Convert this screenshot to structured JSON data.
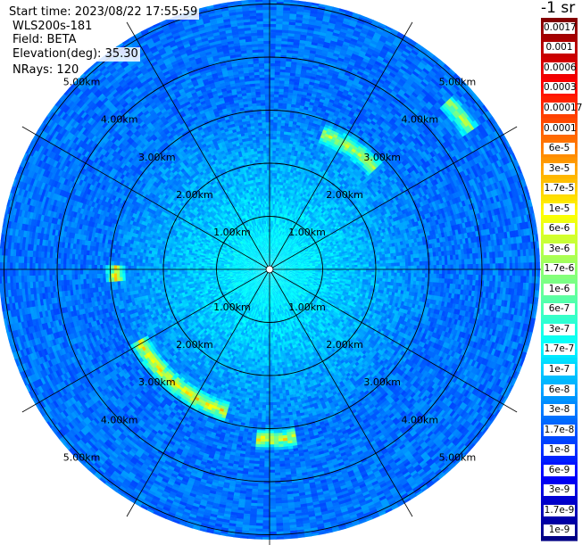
{
  "info": {
    "start_time": "Start time: 2023/08/22 17:55:59",
    "instrument": "WLS200s-181",
    "field": "Field: BETA",
    "elevation": "Elevation(deg): 35.30",
    "nrays": "NRays: 120"
  },
  "chart_data": {
    "type": "heatmap",
    "title": "",
    "projection": "polar",
    "field": "BETA",
    "elevation_deg": 35.3,
    "nrays": 120,
    "start_time": "2023/08/22 17:55:59",
    "range_rings_km": [
      1,
      2,
      3,
      4,
      5
    ],
    "max_range_km": 5.1,
    "range_label_unit": "km",
    "range_labels": [
      "1.00km",
      "2.00km",
      "3.00km",
      "4.00km",
      "5.00km"
    ],
    "spoke_count": 12,
    "colorbar": {
      "title": "-1 sr",
      "labels": [
        "0.0017",
        "0.001",
        "0.0006",
        "0.0003",
        "0.00017",
        "0.0001",
        "6e-5",
        "3e-5",
        "1.7e-5",
        "1e-5",
        "6e-6",
        "3e-6",
        "1.7e-6",
        "1e-6",
        "6e-7",
        "3e-7",
        "1.7e-7",
        "1e-7",
        "6e-8",
        "3e-8",
        "1.7e-8",
        "1e-8",
        "6e-9",
        "3e-9",
        "1.7e-9",
        "1e-9"
      ],
      "min": 1e-09,
      "max": 0.0017,
      "scale": "log",
      "colormap": "jet"
    },
    "background_level_near": 1.7e-07,
    "background_level_far": 3e-08,
    "aerosol_arcs": [
      {
        "azimuth_start_deg": 22,
        "azimuth_end_deg": 45,
        "range_km": 2.75,
        "peak_value": 1e-05
      },
      {
        "azimuth_start_deg": 47,
        "azimuth_end_deg": 55,
        "range_km": 4.6,
        "peak_value": 1e-05
      },
      {
        "azimuth_start_deg": 172,
        "azimuth_end_deg": 183,
        "range_km": 3.2,
        "peak_value": 3e-05
      },
      {
        "azimuth_start_deg": 198,
        "azimuth_end_deg": 240,
        "range_km": 2.8,
        "peak_value": 3e-05
      },
      {
        "azimuth_start_deg": 267,
        "azimuth_end_deg": 271,
        "range_km": 2.9,
        "peak_value": 3e-05
      }
    ]
  }
}
